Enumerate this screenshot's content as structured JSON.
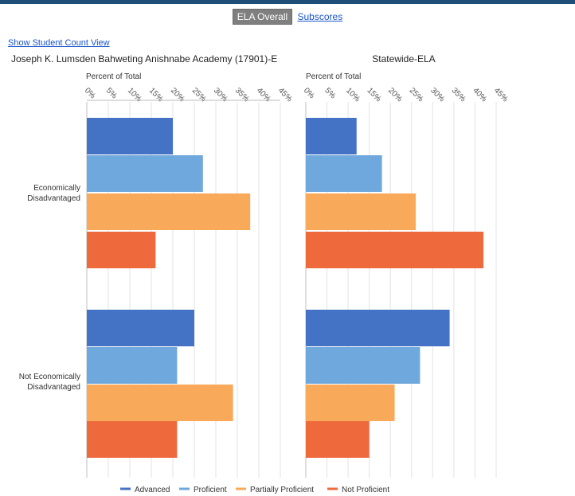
{
  "header": {
    "tab_active": "ELA Overall",
    "tab_link": "Subscores",
    "count_link": "Show Student Count View"
  },
  "chart_data": [
    {
      "type": "bar",
      "orientation": "horizontal",
      "title": "Joseph K. Lumsden Bahweting Anishnabe Academy (17901)-E",
      "axis_label": "Percent of Total",
      "ticks": [
        "0%",
        "5%",
        "10%",
        "15%",
        "20%",
        "25%",
        "30%",
        "35%",
        "40%",
        "45%"
      ],
      "xlim": [
        0,
        45
      ],
      "categories": [
        "Economically Disadvantaged",
        "Not Economically Disadvantaged"
      ],
      "series": [
        {
          "name": "Advanced",
          "color": "#4472c4",
          "values": [
            20,
            25
          ]
        },
        {
          "name": "Proficient",
          "color": "#6fa8dc",
          "values": [
            27,
            21
          ]
        },
        {
          "name": "Partially Proficient",
          "color": "#f9a95a",
          "values": [
            38,
            34
          ]
        },
        {
          "name": "Not Proficient",
          "color": "#ee6a3c",
          "values": [
            16,
            21
          ]
        }
      ]
    },
    {
      "type": "bar",
      "orientation": "horizontal",
      "title": "Statewide-ELA",
      "axis_label": "Percent of Total",
      "ticks": [
        "0%",
        "5%",
        "10%",
        "15%",
        "20%",
        "25%",
        "30%",
        "35%",
        "40%",
        "45%"
      ],
      "xlim": [
        0,
        45
      ],
      "categories": [
        "Economically Disadvantaged",
        "Not Economically Disadvantaged"
      ],
      "series": [
        {
          "name": "Advanced",
          "color": "#4472c4",
          "values": [
            12,
            34
          ]
        },
        {
          "name": "Proficient",
          "color": "#6fa8dc",
          "values": [
            18,
            27
          ]
        },
        {
          "name": "Partially Proficient",
          "color": "#f9a95a",
          "values": [
            26,
            21
          ]
        },
        {
          "name": "Not Proficient",
          "color": "#ee6a3c",
          "values": [
            42,
            15
          ]
        }
      ]
    }
  ],
  "row_labels": [
    [
      "Economically",
      "Disadvantaged"
    ],
    [
      "Not Economically",
      "Disadvantaged"
    ]
  ],
  "legend": [
    "Advanced",
    "Proficient",
    "Partially Proficient",
    "Not Proficient"
  ]
}
